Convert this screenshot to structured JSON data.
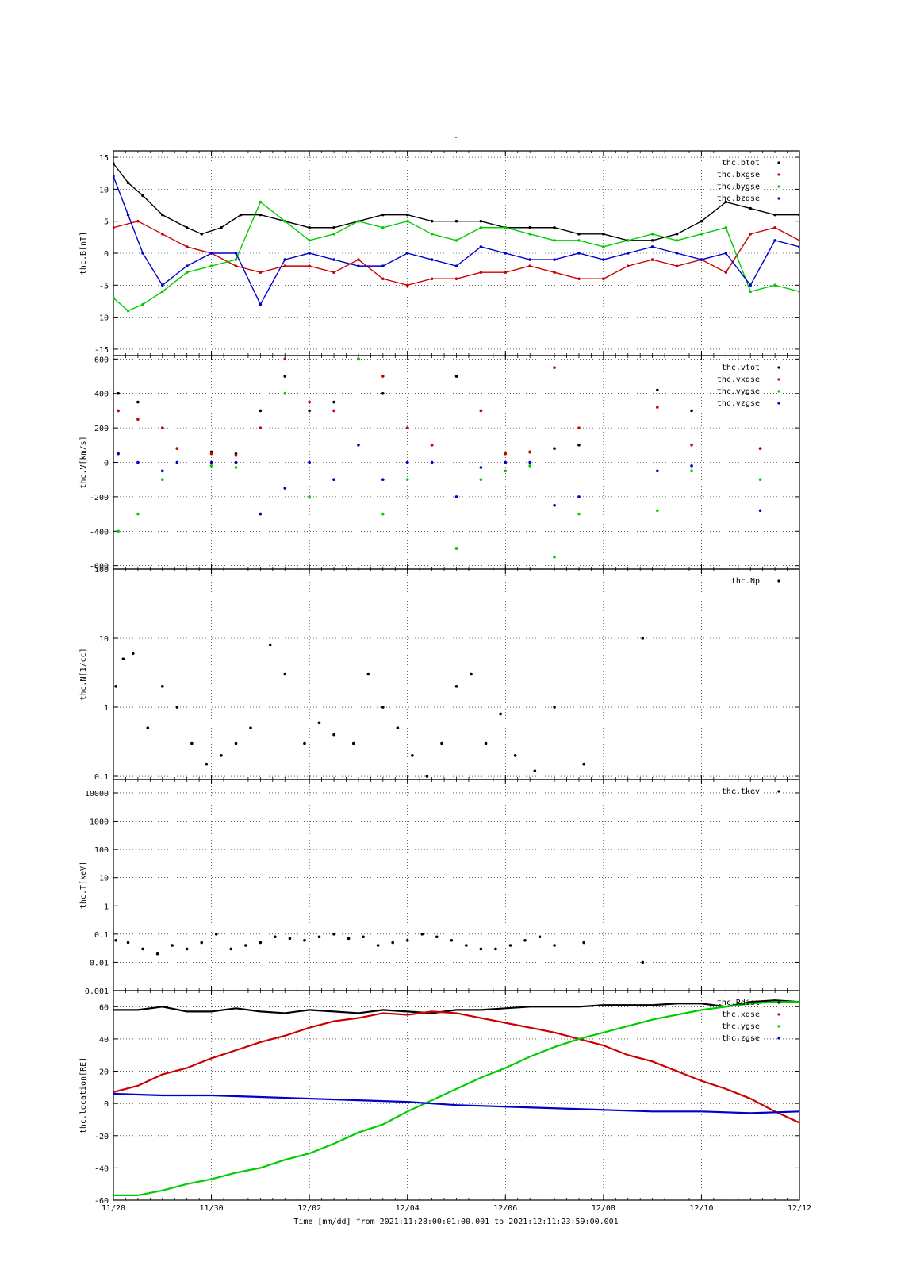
{
  "title": "-",
  "footer": {
    "time_label": "Time [mm/dd]  from 2021:11:28:00:01:00.001  to  2021:12:11:23:59:00.001"
  },
  "colors": {
    "black": "#000000",
    "red": "#cc0000",
    "green": "#00cc00",
    "blue": "#0000cc"
  },
  "chart_data": [
    {
      "type": "scatter",
      "id": "B",
      "ylabel": "thc.B[nT]",
      "ylim": [
        -16,
        16
      ],
      "yticks": [
        -15,
        -10,
        -5,
        0,
        5,
        10,
        15
      ],
      "xlim": [
        "2021-11-28",
        "2021-12-12"
      ],
      "xticks": [
        "11/28",
        "11/30",
        "12/02",
        "12/04",
        "12/06",
        "12/08",
        "12/10",
        "12/12"
      ],
      "grid": true,
      "legend_position": "top-right",
      "series": [
        {
          "name": "thc.btot",
          "color": "black",
          "x": [
            0,
            0.3,
            0.6,
            1.0,
            1.5,
            1.8,
            2.2,
            2.6,
            3.0,
            3.5,
            4.0,
            4.5,
            5.0,
            5.5,
            6.0,
            6.5,
            7.0,
            7.5,
            8.0,
            8.5,
            9.0,
            9.5,
            10.0,
            10.5,
            11.0,
            11.5,
            12.0,
            12.5,
            13.0,
            13.5,
            14.0
          ],
          "y": [
            14,
            11,
            9,
            6,
            4,
            3,
            4,
            6,
            6,
            5,
            4,
            4,
            5,
            6,
            6,
            5,
            5,
            5,
            4,
            4,
            4,
            3,
            3,
            2,
            2,
            3,
            5,
            8,
            7,
            6,
            6
          ]
        },
        {
          "name": "thc.bxgse",
          "color": "red",
          "x": [
            0,
            0.5,
            1.0,
            1.5,
            2.0,
            2.5,
            3.0,
            3.5,
            4.0,
            4.5,
            5.0,
            5.5,
            6.0,
            6.5,
            7.0,
            7.5,
            8.0,
            8.5,
            9.0,
            9.5,
            10.0,
            10.5,
            11.0,
            11.5,
            12.0,
            12.5,
            13.0,
            13.5,
            14.0
          ],
          "y": [
            4,
            5,
            3,
            1,
            0,
            -2,
            -3,
            -2,
            -2,
            -3,
            -1,
            -4,
            -5,
            -4,
            -4,
            -3,
            -3,
            -2,
            -3,
            -4,
            -4,
            -2,
            -1,
            -2,
            -1,
            -3,
            3,
            4,
            2
          ]
        },
        {
          "name": "thc.bygse",
          "color": "green",
          "x": [
            0,
            0.3,
            0.6,
            1.0,
            1.5,
            2.0,
            2.5,
            3.0,
            3.5,
            4.0,
            4.5,
            5.0,
            5.5,
            6.0,
            6.5,
            7.0,
            7.5,
            8.0,
            8.5,
            9.0,
            9.5,
            10.0,
            10.5,
            11.0,
            11.5,
            12.0,
            12.5,
            13.0,
            13.5,
            14.0
          ],
          "y": [
            -7,
            -9,
            -8,
            -6,
            -3,
            -2,
            -1,
            8,
            5,
            2,
            3,
            5,
            4,
            5,
            3,
            2,
            4,
            4,
            3,
            2,
            2,
            1,
            2,
            3,
            2,
            3,
            4,
            -6,
            -5,
            -6
          ]
        },
        {
          "name": "thc.bzgse",
          "color": "blue",
          "x": [
            0,
            0.3,
            0.6,
            1.0,
            1.5,
            2.0,
            2.5,
            3.0,
            3.5,
            4.0,
            4.5,
            5.0,
            5.5,
            6.0,
            6.5,
            7.0,
            7.5,
            8.0,
            8.5,
            9.0,
            9.5,
            10.0,
            10.5,
            11.0,
            11.5,
            12.0,
            12.5,
            13.0,
            13.5,
            14.0
          ],
          "y": [
            12,
            6,
            0,
            -5,
            -2,
            0,
            0,
            -8,
            -1,
            0,
            -1,
            -2,
            -2,
            0,
            -1,
            -2,
            1,
            0,
            -1,
            -1,
            0,
            -1,
            0,
            1,
            0,
            -1,
            0,
            -5,
            2,
            1
          ]
        }
      ]
    },
    {
      "type": "scatter",
      "id": "V",
      "ylabel": "thc.V[km/s]",
      "ylim": [
        -620,
        620
      ],
      "yticks": [
        -600,
        -400,
        -200,
        0,
        200,
        400,
        600
      ],
      "xlim": [
        "2021-11-28",
        "2021-12-12"
      ],
      "xticks": [
        "11/28",
        "11/30",
        "12/02",
        "12/04",
        "12/06",
        "12/08",
        "12/10",
        "12/12"
      ],
      "grid": true,
      "legend_position": "top-right",
      "series": [
        {
          "name": "thc.vtot",
          "color": "black",
          "x": [
            0.1,
            0.5,
            1.0,
            1.3,
            2.0,
            2.5,
            3.0,
            3.5,
            4.0,
            4.5,
            5.0,
            5.5,
            6.0,
            6.5,
            7.0,
            7.5,
            8.0,
            8.5,
            9.0,
            9.5,
            11.1,
            11.8,
            13.2
          ],
          "y": [
            400,
            350,
            200,
            80,
            60,
            50,
            300,
            500,
            300,
            350,
            600,
            400,
            200,
            100,
            500,
            300,
            50,
            60,
            80,
            100,
            420,
            300,
            80
          ]
        },
        {
          "name": "thc.vxgse",
          "color": "red",
          "x": [
            0.1,
            0.5,
            1.0,
            1.3,
            2.0,
            2.5,
            3.0,
            3.5,
            4.0,
            4.5,
            5.0,
            5.5,
            6.0,
            6.5,
            7.0,
            7.5,
            8.0,
            8.5,
            9.0,
            9.5,
            11.1,
            11.8,
            13.2
          ],
          "y": [
            300,
            250,
            200,
            80,
            50,
            40,
            200,
            600,
            350,
            300,
            600,
            500,
            200,
            100,
            -500,
            300,
            50,
            60,
            550,
            200,
            320,
            100,
            80
          ]
        },
        {
          "name": "thc.vygse",
          "color": "green",
          "x": [
            0.1,
            0.5,
            1.0,
            1.3,
            2.0,
            2.5,
            3.0,
            3.5,
            4.0,
            4.5,
            5.0,
            5.5,
            6.0,
            6.5,
            7.0,
            7.5,
            8.0,
            8.5,
            9.0,
            9.5,
            11.1,
            11.8,
            13.2
          ],
          "y": [
            -400,
            -300,
            -100,
            0,
            -20,
            -30,
            -300,
            400,
            -200,
            -100,
            600,
            -300,
            -100,
            0,
            -500,
            -100,
            -50,
            -20,
            -550,
            -300,
            -280,
            -50,
            -100
          ]
        },
        {
          "name": "thc.vzgse",
          "color": "blue",
          "x": [
            0.1,
            0.5,
            1.0,
            1.3,
            2.0,
            2.5,
            3.0,
            3.5,
            4.0,
            4.5,
            5.0,
            5.5,
            6.0,
            6.5,
            7.0,
            7.5,
            8.0,
            8.5,
            9.0,
            9.5,
            11.1,
            11.8,
            13.2
          ],
          "y": [
            50,
            0,
            -50,
            0,
            0,
            0,
            -300,
            -150,
            0,
            -100,
            100,
            -100,
            0,
            0,
            -200,
            -30,
            0,
            0,
            -250,
            -200,
            -50,
            -20,
            -280
          ]
        }
      ]
    },
    {
      "type": "scatter",
      "id": "N",
      "ylabel": "thc.N[1/cc]",
      "yscale": "log",
      "ylim": [
        0.09,
        100
      ],
      "yticks": [
        0.1,
        1,
        10,
        100
      ],
      "ytick_labels": [
        "0.1",
        "1",
        "10",
        "100"
      ],
      "xlim": [
        "2021-11-28",
        "2021-12-12"
      ],
      "xticks": [
        "11/28",
        "11/30",
        "12/02",
        "12/04",
        "12/06",
        "12/08",
        "12/10",
        "12/12"
      ],
      "grid": true,
      "legend_position": "top-right",
      "series": [
        {
          "name": "thc.Np",
          "color": "black",
          "x": [
            0.05,
            0.2,
            0.4,
            0.7,
            1.0,
            1.3,
            1.6,
            1.9,
            2.2,
            2.5,
            2.8,
            3.2,
            3.5,
            3.9,
            4.2,
            4.5,
            4.9,
            5.2,
            5.5,
            5.8,
            6.1,
            6.4,
            6.7,
            7.0,
            7.3,
            7.6,
            7.9,
            8.2,
            8.6,
            9.0,
            9.6,
            10.8
          ],
          "y": [
            2,
            5,
            6,
            0.5,
            2,
            1,
            0.3,
            0.15,
            0.2,
            0.3,
            0.5,
            8,
            3,
            0.3,
            0.6,
            0.4,
            0.3,
            3,
            1,
            0.5,
            0.2,
            0.1,
            0.3,
            2,
            3,
            0.3,
            0.8,
            0.2,
            0.12,
            1,
            0.15,
            10
          ]
        }
      ]
    },
    {
      "type": "scatter",
      "id": "T",
      "ylabel": "thc.T[keV]",
      "yscale": "log",
      "ylim": [
        0.001,
        30000
      ],
      "yticks": [
        0.001,
        0.01,
        0.1,
        1,
        10,
        100,
        1000,
        10000
      ],
      "ytick_labels": [
        "0.001",
        "0.01",
        "0.1",
        "1",
        "10",
        "100",
        "1000",
        "10000"
      ],
      "xlim": [
        "2021-11-28",
        "2021-12-12"
      ],
      "xticks": [
        "11/28",
        "11/30",
        "12/02",
        "12/04",
        "12/06",
        "12/08",
        "12/10",
        "12/12"
      ],
      "grid": true,
      "legend_position": "top-right",
      "series": [
        {
          "name": "thc.tkev",
          "color": "black",
          "x": [
            0.05,
            0.3,
            0.6,
            0.9,
            1.2,
            1.5,
            1.8,
            2.1,
            2.4,
            2.7,
            3.0,
            3.3,
            3.6,
            3.9,
            4.2,
            4.5,
            4.8,
            5.1,
            5.4,
            5.7,
            6.0,
            6.3,
            6.6,
            6.9,
            7.2,
            7.5,
            7.8,
            8.1,
            8.4,
            8.7,
            9.0,
            9.6,
            10.8
          ],
          "y": [
            0.06,
            0.05,
            0.03,
            0.02,
            0.04,
            0.03,
            0.05,
            0.1,
            0.03,
            0.04,
            0.05,
            0.08,
            0.07,
            0.06,
            0.08,
            0.1,
            0.07,
            0.08,
            0.04,
            0.05,
            0.06,
            0.1,
            0.08,
            0.06,
            0.04,
            0.03,
            0.03,
            0.04,
            0.06,
            0.08,
            0.04,
            0.05,
            0.01
          ]
        }
      ]
    },
    {
      "type": "line",
      "id": "location",
      "ylabel": "thc.location[RE]",
      "ylim": [
        -60,
        70
      ],
      "yticks": [
        -60,
        -40,
        -20,
        0,
        20,
        40,
        60
      ],
      "xlim": [
        "2021-11-28",
        "2021-12-12"
      ],
      "xticks": [
        "11/28",
        "11/30",
        "12/02",
        "12/04",
        "12/06",
        "12/08",
        "12/10",
        "12/12"
      ],
      "grid": true,
      "legend_position": "top-right",
      "series": [
        {
          "name": "thc.Rdist",
          "color": "black",
          "x": [
            0,
            0.5,
            1.0,
            1.5,
            2.0,
            2.5,
            3.0,
            3.5,
            4.0,
            4.5,
            5.0,
            5.5,
            6.0,
            6.5,
            7.0,
            7.5,
            8.0,
            8.5,
            9.0,
            9.5,
            10.0,
            10.5,
            11.0,
            11.5,
            12.0,
            12.5,
            13.0,
            13.5,
            14.0
          ],
          "y": [
            58,
            58,
            60,
            57,
            57,
            59,
            57,
            56,
            58,
            57,
            56,
            58,
            57,
            56,
            58,
            58,
            59,
            60,
            60,
            60,
            61,
            61,
            61,
            62,
            62,
            60,
            63,
            64,
            63
          ]
        },
        {
          "name": "thc.xgse",
          "color": "red",
          "x": [
            0,
            0.5,
            1.0,
            1.5,
            2.0,
            2.5,
            3.0,
            3.5,
            4.0,
            4.5,
            5.0,
            5.5,
            6.0,
            6.5,
            7.0,
            7.5,
            8.0,
            8.5,
            9.0,
            9.5,
            10.0,
            10.5,
            11.0,
            11.5,
            12.0,
            12.5,
            13.0,
            13.5,
            14.0
          ],
          "y": [
            7,
            11,
            18,
            22,
            28,
            33,
            38,
            42,
            47,
            51,
            53,
            56,
            55,
            57,
            56,
            53,
            50,
            47,
            44,
            40,
            36,
            30,
            26,
            20,
            14,
            9,
            3,
            -5,
            -12
          ]
        },
        {
          "name": "thc.ygse",
          "color": "green",
          "x": [
            0,
            0.5,
            1.0,
            1.5,
            2.0,
            2.5,
            3.0,
            3.5,
            4.0,
            4.5,
            5.0,
            5.5,
            6.0,
            6.5,
            7.0,
            7.5,
            8.0,
            8.5,
            9.0,
            9.5,
            10.0,
            10.5,
            11.0,
            11.5,
            12.0,
            12.5,
            13.0,
            13.5,
            14.0
          ],
          "y": [
            -57,
            -57,
            -54,
            -50,
            -47,
            -43,
            -40,
            -35,
            -31,
            -25,
            -18,
            -13,
            -5,
            2,
            9,
            16,
            22,
            29,
            35,
            40,
            44,
            48,
            52,
            55,
            58,
            60,
            62,
            63,
            63
          ]
        },
        {
          "name": "thc.zgse",
          "color": "blue",
          "x": [
            0,
            1.0,
            2.0,
            3.0,
            4.0,
            5.0,
            6.0,
            7.0,
            8.0,
            9.0,
            10.0,
            11.0,
            12.0,
            13.0,
            14.0
          ],
          "y": [
            6,
            5,
            5,
            4,
            3,
            2,
            1,
            -1,
            -2,
            -3,
            -4,
            -5,
            -5,
            -6,
            -5
          ]
        }
      ]
    }
  ]
}
